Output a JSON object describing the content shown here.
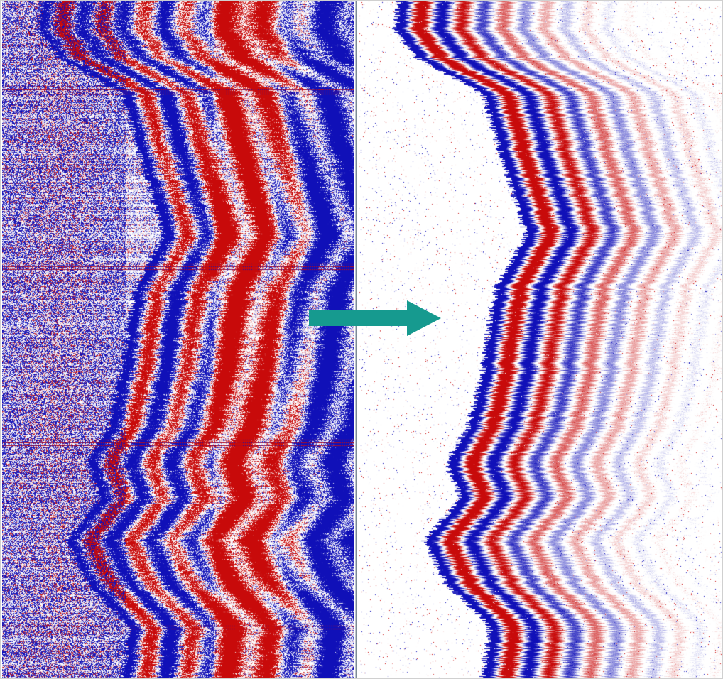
{
  "figure": {
    "description_type": "seismic-gather-comparison",
    "panels": [
      {
        "id": "left",
        "style": "raw-clipped",
        "colors": {
          "positive": "#c80a0a",
          "negative": "#1010b8",
          "background": "#ffffff"
        }
      },
      {
        "id": "right",
        "style": "processed-variable-density",
        "colors": {
          "positive": "#c80a0a",
          "negative": "#1010b8",
          "background": "#ffffff"
        }
      }
    ],
    "arrow_color": "#169a8f",
    "divider_color": "#7c8a96"
  }
}
